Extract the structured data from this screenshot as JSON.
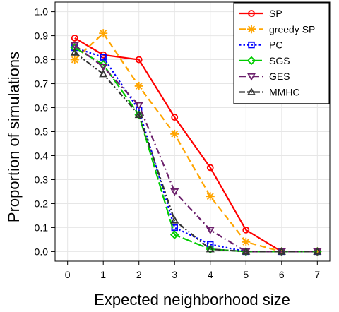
{
  "chart_data": {
    "type": "line",
    "xlabel": "Expected neighborhood size",
    "ylabel": "Proportion of simulations",
    "x": [
      0.2,
      1,
      2,
      3,
      4,
      5,
      6,
      7
    ],
    "xlim": [
      -0.35,
      7.35
    ],
    "ylim": [
      -0.04,
      1.04
    ],
    "xticks": [
      "0",
      "1",
      "2",
      "3",
      "4",
      "5",
      "6",
      "7"
    ],
    "yticks": [
      "0.0",
      "0.1",
      "0.2",
      "0.3",
      "0.4",
      "0.5",
      "0.6",
      "0.7",
      "0.8",
      "0.9",
      "1.0"
    ],
    "grid": true,
    "legend_position": "top-right",
    "series": [
      {
        "name": "SP",
        "color": "#ff0000",
        "dash": "solid",
        "marker": "circle",
        "values": [
          0.89,
          0.82,
          0.8,
          0.56,
          0.35,
          0.09,
          0.0,
          0.0
        ]
      },
      {
        "name": "greedy SP",
        "color": "#ffa500",
        "dash": "dashed",
        "marker": "asterisk",
        "values": [
          0.8,
          0.91,
          0.69,
          0.49,
          0.23,
          0.04,
          0.0,
          0.0
        ]
      },
      {
        "name": "PC",
        "color": "#0000ff",
        "dash": "dotted",
        "marker": "square",
        "values": [
          0.85,
          0.81,
          0.59,
          0.1,
          0.03,
          0.0,
          0.0,
          0.0
        ]
      },
      {
        "name": "SGS",
        "color": "#00cc00",
        "dash": "longdash",
        "marker": "diamond",
        "values": [
          0.85,
          0.78,
          0.57,
          0.07,
          0.01,
          0.0,
          0.0,
          0.0
        ]
      },
      {
        "name": "GES",
        "color": "#6b1f6b",
        "dash": "dashdot",
        "marker": "triangle-down",
        "values": [
          0.86,
          0.77,
          0.61,
          0.25,
          0.09,
          0.0,
          0.0,
          0.0
        ]
      },
      {
        "name": "MMHC",
        "color": "#333333",
        "dash": "dashdot2",
        "marker": "triangle-up",
        "values": [
          0.83,
          0.74,
          0.57,
          0.13,
          0.01,
          0.0,
          0.0,
          0.0
        ]
      }
    ]
  }
}
